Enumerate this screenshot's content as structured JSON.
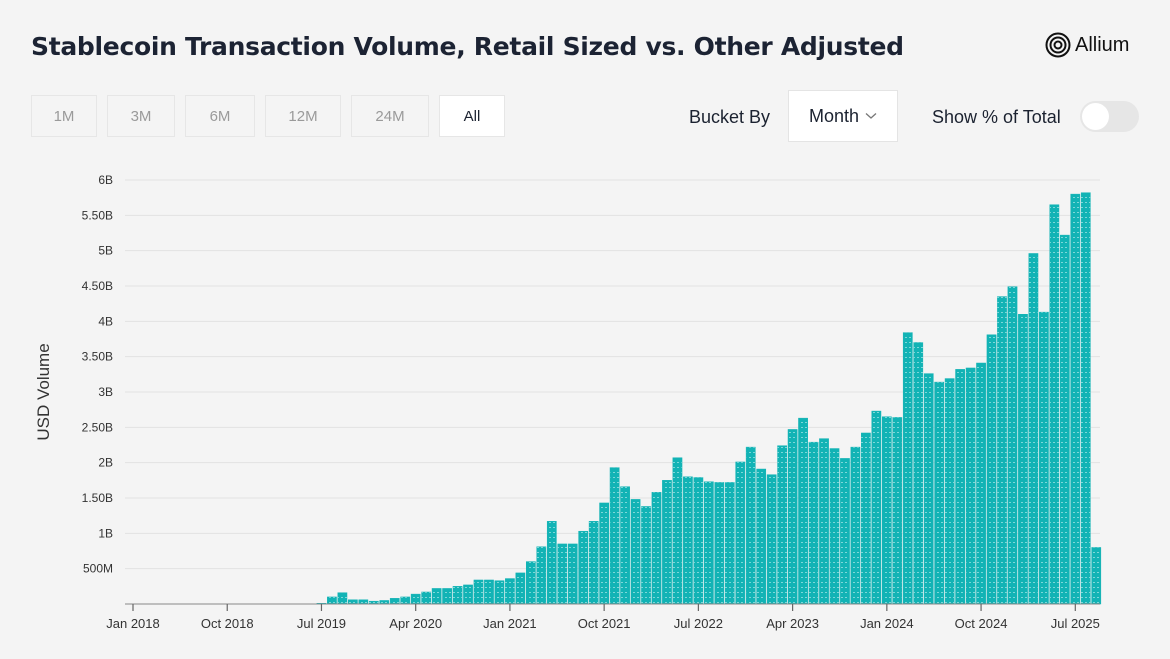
{
  "header": {
    "title": "Stablecoin Transaction Volume, Retail Sized vs. Other Adjusted",
    "logo_text": "Allium"
  },
  "controls": {
    "ranges": [
      {
        "label": "1M"
      },
      {
        "label": "3M"
      },
      {
        "label": "6M"
      },
      {
        "label": "12M"
      },
      {
        "label": "24M"
      },
      {
        "label": "All",
        "active": true
      }
    ],
    "bucket_label": "Bucket By",
    "bucket_value": "Month",
    "pct_label": "Show % of Total",
    "pct_on": false
  },
  "chart_data": {
    "type": "bar",
    "title": "Stablecoin Transaction Volume, Retail Sized vs. Other Adjusted",
    "ylabel": "USD Volume",
    "xlabel": "",
    "ylim": [
      0,
      6000000000
    ],
    "xlim": [
      "2018-01",
      "2025-09"
    ],
    "color": "#12b3b5",
    "grid": true,
    "yticks": [
      {
        "v": 500000000,
        "label": "500M"
      },
      {
        "v": 1000000000,
        "label": "1B"
      },
      {
        "v": 1500000000,
        "label": "1.50B"
      },
      {
        "v": 2000000000,
        "label": "2B"
      },
      {
        "v": 2500000000,
        "label": "2.50B"
      },
      {
        "v": 3000000000,
        "label": "3B"
      },
      {
        "v": 3500000000,
        "label": "3.50B"
      },
      {
        "v": 4000000000,
        "label": "4B"
      },
      {
        "v": 4500000000,
        "label": "4.50B"
      },
      {
        "v": 5000000000,
        "label": "5B"
      },
      {
        "v": 5500000000,
        "label": "5.50B"
      },
      {
        "v": 6000000000,
        "label": "6B"
      }
    ],
    "xticks": [
      {
        "date": "2018-01",
        "label": "Jan 2018"
      },
      {
        "date": "2018-10",
        "label": "Oct 2018"
      },
      {
        "date": "2019-07",
        "label": "Jul 2019"
      },
      {
        "date": "2020-04",
        "label": "Apr 2020"
      },
      {
        "date": "2021-01",
        "label": "Jan 2021"
      },
      {
        "date": "2021-10",
        "label": "Oct 2021"
      },
      {
        "date": "2022-07",
        "label": "Jul 2022"
      },
      {
        "date": "2023-04",
        "label": "Apr 2023"
      },
      {
        "date": "2024-01",
        "label": "Jan 2024"
      },
      {
        "date": "2024-10",
        "label": "Oct 2024"
      },
      {
        "date": "2025-07",
        "label": "Jul 2025"
      }
    ],
    "start": "2019-07",
    "values": [
      0.01,
      0.1,
      0.16,
      0.06,
      0.06,
      0.04,
      0.05,
      0.08,
      0.1,
      0.14,
      0.17,
      0.22,
      0.22,
      0.25,
      0.27,
      0.34,
      0.34,
      0.33,
      0.36,
      0.44,
      0.6,
      0.81,
      1.17,
      0.85,
      0.85,
      1.03,
      1.17,
      1.43,
      1.93,
      1.66,
      1.48,
      1.38,
      1.58,
      1.75,
      2.07,
      1.8,
      1.79,
      1.73,
      1.72,
      1.72,
      2.01,
      2.22,
      1.91,
      1.83,
      2.24,
      2.47,
      2.63,
      2.29,
      2.34,
      2.2,
      2.06,
      2.22,
      2.42,
      2.73,
      2.65,
      2.64,
      3.84,
      3.7,
      3.26,
      3.14,
      3.19,
      3.32,
      3.34,
      3.41,
      3.81,
      4.35,
      4.49,
      4.1,
      4.96,
      4.13,
      5.65,
      5.22,
      5.8,
      5.82,
      0.8
    ],
    "values_unit": "billion USD"
  }
}
